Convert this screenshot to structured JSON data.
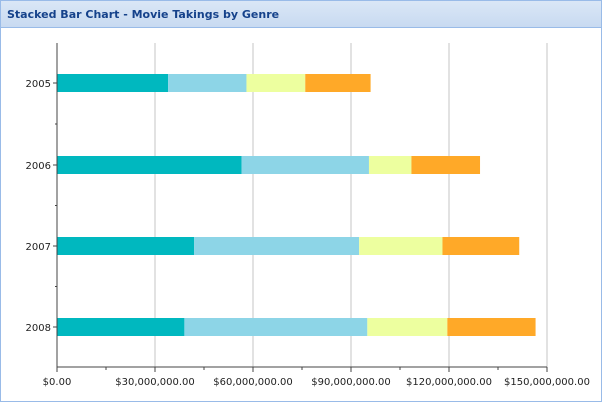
{
  "window": {
    "title": "Stacked Bar Chart - Movie Takings by Genre"
  },
  "chart_data": {
    "type": "bar",
    "orientation": "horizontal",
    "stacked": true,
    "title": "Stacked Bar Chart - Movie Takings by Genre",
    "xlabel": "",
    "ylabel": "",
    "categories": [
      "2005",
      "2006",
      "2007",
      "2008"
    ],
    "xlim": [
      0,
      150000000
    ],
    "x_ticks": [
      0,
      30000000,
      60000000,
      90000000,
      120000000,
      150000000
    ],
    "x_tick_labels": [
      "$0.00",
      "$30,000,000.00",
      "$60,000,000.00",
      "$90,000,000.00",
      "$120,000,000.00",
      "$150,000,000.00"
    ],
    "grid": true,
    "legend": "none",
    "series": [
      {
        "color": "#00b8bf",
        "values": [
          34000000,
          56500000,
          42000000,
          39000000
        ]
      },
      {
        "color": "#8dd5e7",
        "values": [
          24000000,
          39000000,
          50500000,
          56000000
        ]
      },
      {
        "color": "#edff9f",
        "values": [
          18000000,
          13000000,
          25500000,
          24500000
        ]
      },
      {
        "color": "#ffa928",
        "values": [
          20000000,
          21000000,
          23500000,
          27000000
        ]
      }
    ]
  }
}
